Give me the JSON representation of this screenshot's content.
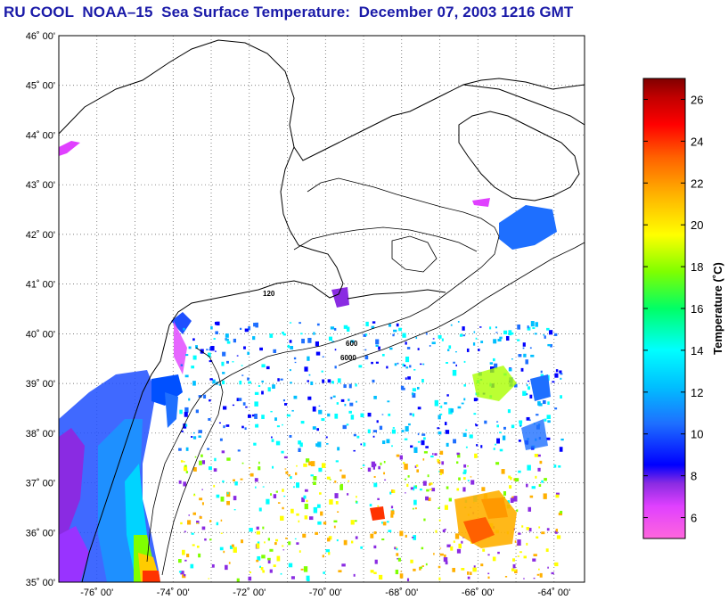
{
  "title": "RU COOL  NOAA–15  Sea Surface Temperature:  December 07, 2003 1216 GMT",
  "map": {
    "latitude_labels": [
      "46˚ 00'",
      "45˚ 00'",
      "44˚ 00'",
      "43˚ 00'",
      "42˚ 00'",
      "41˚ 00'",
      "40˚ 00'",
      "39˚ 00'",
      "38˚ 00'",
      "37˚ 00'",
      "36˚ 00'",
      "35˚ 00'"
    ],
    "longitude_labels": [
      "-76˚ 00'",
      "-74˚ 00'",
      "-72˚ 00'",
      "-70˚ 00'",
      "-68˚ 00'",
      "-66˚ 00'",
      "-64˚ 00'"
    ],
    "contour_labels": [
      "120",
      "600",
      "6000"
    ],
    "grid": true
  },
  "colorbar": {
    "title": "Temperature (˚C)",
    "ticks": [
      "26",
      "24",
      "22",
      "20",
      "18",
      "16",
      "14",
      "12",
      "10",
      "8",
      "6"
    ],
    "range": [
      5,
      27
    ],
    "colors": [
      "#ff66dd",
      "#e040ff",
      "#8a2be2",
      "#0000ff",
      "#1e6fff",
      "#00bfff",
      "#00ffff",
      "#00ff66",
      "#7fff00",
      "#ffff00",
      "#ffb000",
      "#ff6000",
      "#ff0000",
      "#c00000",
      "#800000"
    ]
  }
}
